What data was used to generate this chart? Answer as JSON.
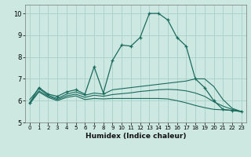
{
  "xlabel": "Humidex (Indice chaleur)",
  "bg_color": "#cde8e0",
  "grid_color": "#aacfc7",
  "line_color": "#1a6b60",
  "xlim": [
    -0.5,
    23.5
  ],
  "ylim": [
    5.0,
    10.4
  ],
  "xticks": [
    0,
    1,
    2,
    3,
    4,
    5,
    6,
    7,
    8,
    9,
    10,
    11,
    12,
    13,
    14,
    15,
    16,
    17,
    18,
    19,
    20,
    21,
    22,
    23
  ],
  "yticks": [
    5,
    6,
    7,
    8,
    9,
    10
  ],
  "lines": [
    {
      "x": [
        0,
        1,
        2,
        3,
        4,
        5,
        6,
        7,
        8,
        9,
        10,
        11,
        12,
        13,
        14,
        15,
        16,
        17,
        18,
        19,
        20,
        21,
        22,
        23
      ],
      "y": [
        5.9,
        6.6,
        6.3,
        6.2,
        6.4,
        6.5,
        6.3,
        7.55,
        6.35,
        7.85,
        8.55,
        8.5,
        8.9,
        10.0,
        10.0,
        9.7,
        8.9,
        8.5,
        7.0,
        6.6,
        6.0,
        5.6,
        5.55,
        5.5
      ],
      "marker": true
    },
    {
      "x": [
        0,
        1,
        2,
        3,
        4,
        5,
        6,
        7,
        8,
        9,
        10,
        11,
        12,
        13,
        14,
        15,
        16,
        17,
        18,
        19,
        20,
        21,
        22,
        23
      ],
      "y": [
        6.05,
        6.55,
        6.25,
        6.1,
        6.3,
        6.4,
        6.25,
        6.35,
        6.3,
        6.5,
        6.55,
        6.6,
        6.65,
        6.7,
        6.75,
        6.8,
        6.85,
        6.9,
        7.0,
        7.0,
        6.65,
        6.05,
        5.65,
        5.5
      ],
      "marker": false
    },
    {
      "x": [
        0,
        1,
        2,
        3,
        4,
        5,
        6,
        7,
        8,
        9,
        10,
        11,
        12,
        13,
        14,
        15,
        16,
        17,
        18,
        19,
        20,
        21,
        22,
        23
      ],
      "y": [
        5.9,
        6.45,
        6.2,
        6.05,
        6.22,
        6.3,
        6.15,
        6.25,
        6.2,
        6.28,
        6.32,
        6.36,
        6.42,
        6.46,
        6.5,
        6.52,
        6.5,
        6.45,
        6.35,
        6.2,
        5.95,
        5.75,
        5.6,
        5.5
      ],
      "marker": false
    },
    {
      "x": [
        0,
        1,
        2,
        3,
        4,
        5,
        6,
        7,
        8,
        9,
        10,
        11,
        12,
        13,
        14,
        15,
        16,
        17,
        18,
        19,
        20,
        21,
        22,
        23
      ],
      "y": [
        5.85,
        6.4,
        6.15,
        6.0,
        6.15,
        6.22,
        6.05,
        6.1,
        6.08,
        6.1,
        6.1,
        6.1,
        6.1,
        6.1,
        6.1,
        6.08,
        6.0,
        5.9,
        5.78,
        5.68,
        5.6,
        5.58,
        5.55,
        5.5
      ],
      "marker": false
    }
  ]
}
